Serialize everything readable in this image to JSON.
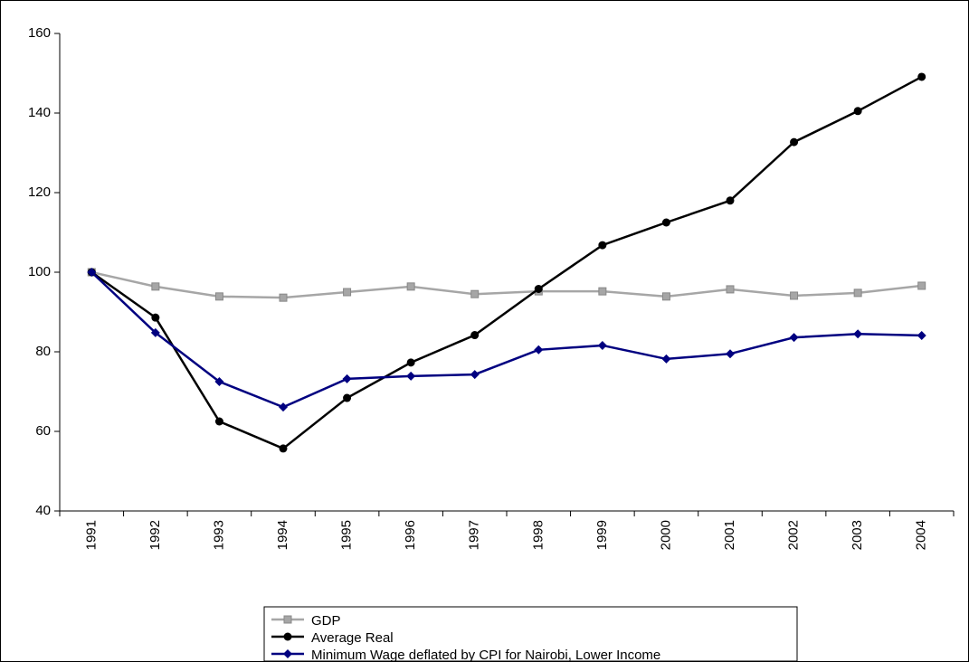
{
  "chart_data": {
    "type": "line",
    "categories": [
      "1991",
      "1992",
      "1993",
      "1994",
      "1995",
      "1996",
      "1997",
      "1998",
      "1999",
      "2000",
      "2001",
      "2002",
      "2003",
      "2004"
    ],
    "series": [
      {
        "name": "GDP",
        "color": "#a6a6a6",
        "marker": "square",
        "values": [
          100,
          96.4,
          93.9,
          93.6,
          95.0,
          96.4,
          94.5,
          95.2,
          95.2,
          93.9,
          95.7,
          94.1,
          94.8,
          96.6
        ]
      },
      {
        "name": "Average Real",
        "color": "#000000",
        "marker": "circle",
        "values": [
          100,
          88.6,
          62.5,
          55.7,
          68.4,
          77.3,
          84.2,
          95.8,
          106.8,
          112.5,
          118.0,
          132.7,
          140.5,
          149.1
        ]
      },
      {
        "name": "Minimum Wage deflated by CPI for Nairobi, Lower Income",
        "color": "#000080",
        "marker": "diamond",
        "values": [
          100,
          84.8,
          72.5,
          66.1,
          73.2,
          73.9,
          74.3,
          80.5,
          81.6,
          78.2,
          79.5,
          83.6,
          84.5,
          84.1
        ]
      }
    ],
    "ylim": [
      40,
      160
    ],
    "yticks": [
      40,
      60,
      80,
      100,
      120,
      140,
      160
    ],
    "grid": false
  }
}
